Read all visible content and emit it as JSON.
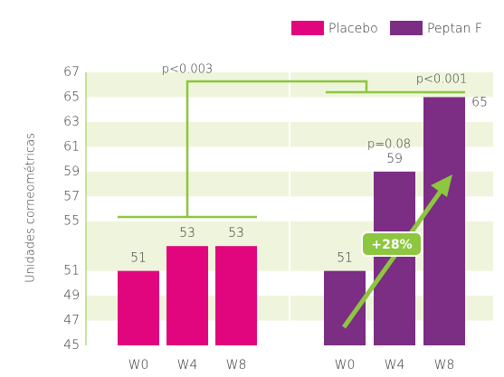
{
  "chart_data": {
    "type": "bar",
    "y_label": "Unidades corneométricas",
    "categories": [
      "W0",
      "W4",
      "W8"
    ],
    "series": [
      {
        "name": "Placebo",
        "color": "#e2067e",
        "values": [
          51,
          53,
          53
        ]
      },
      {
        "name": "Peptan F",
        "color": "#7c2d84",
        "values": [
          51,
          59,
          65
        ]
      }
    ],
    "ylim": [
      45,
      67
    ],
    "yticks": [
      45,
      47,
      49,
      51,
      55,
      57,
      59,
      61,
      63,
      65,
      67
    ],
    "annotations": [
      "p<0.003",
      "p<0.001",
      "p=0.08",
      "+28%"
    ],
    "grid": true
  }
}
